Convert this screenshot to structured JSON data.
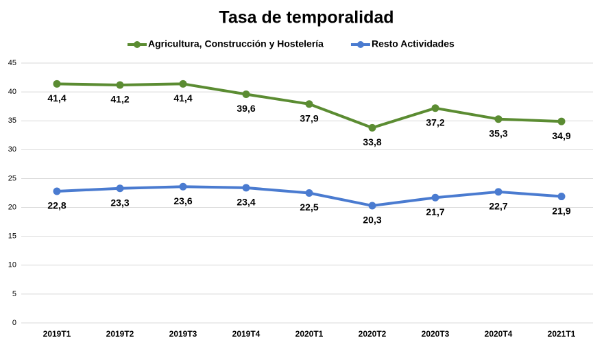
{
  "chart_data": {
    "type": "line",
    "title": "Tasa de temporalidad",
    "categories": [
      "2019T1",
      "2019T2",
      "2019T3",
      "2019T4",
      "2020T1",
      "2020T2",
      "2020T3",
      "2020T4",
      "2021T1"
    ],
    "series": [
      {
        "name": "Agricultura, Construcción y Hostelería",
        "color": "#5b8c32",
        "values": [
          41.4,
          41.2,
          41.4,
          39.6,
          37.9,
          33.8,
          37.2,
          35.3,
          34.9
        ],
        "value_labels": [
          "41,4",
          "41,2",
          "41,4",
          "39,6",
          "37,9",
          "33,8",
          "37,2",
          "35,3",
          "34,9"
        ]
      },
      {
        "name": "Resto Actividades",
        "color": "#4a7bd0",
        "values": [
          22.8,
          23.3,
          23.6,
          23.4,
          22.5,
          20.3,
          21.7,
          22.7,
          21.9
        ],
        "value_labels": [
          "22,8",
          "23,3",
          "23,6",
          "23,4",
          "22,5",
          "20,3",
          "21,7",
          "22,7",
          "21,9"
        ]
      }
    ],
    "ylim": [
      0,
      45
    ],
    "yticks": [
      0,
      5,
      10,
      15,
      20,
      25,
      30,
      35,
      40,
      45
    ],
    "grid": true,
    "legend": "top"
  }
}
